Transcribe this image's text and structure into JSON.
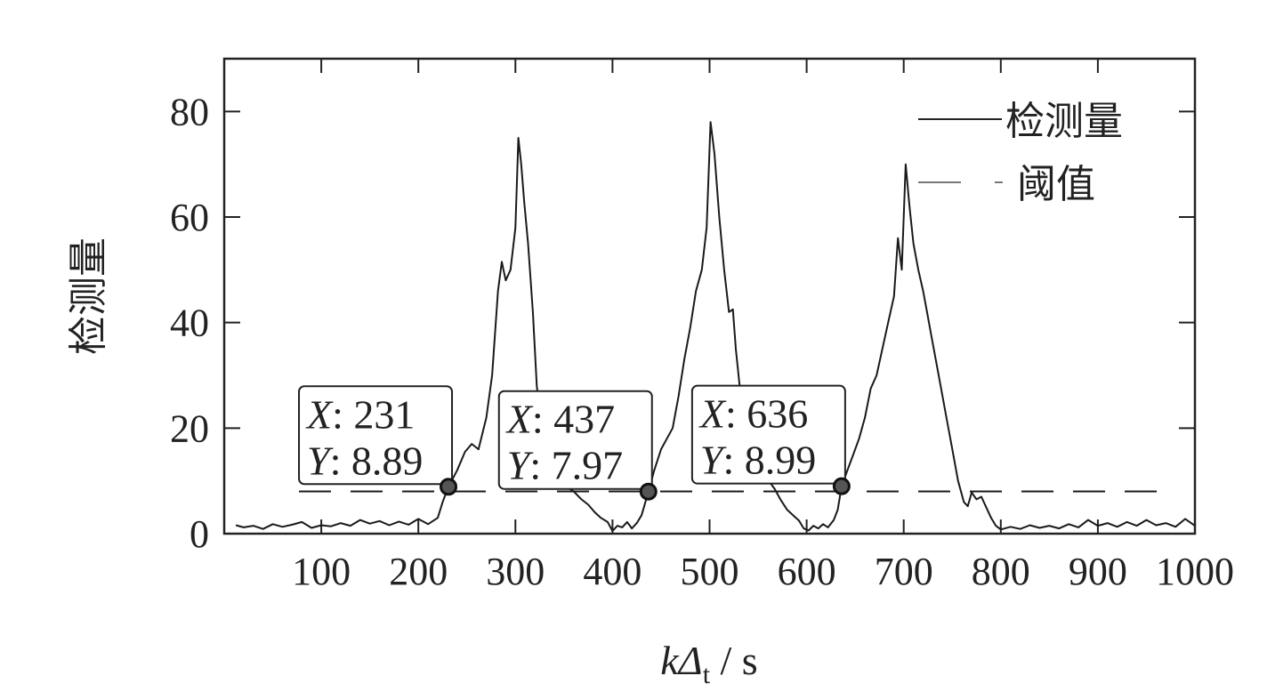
{
  "chart_data": {
    "type": "line",
    "xlabel": {
      "var": "kΔ",
      "sub": "t",
      "unit": " / s"
    },
    "ylabel": "检测量",
    "xlim": [
      0,
      1000
    ],
    "ylim": [
      0,
      90
    ],
    "xticks": [
      100,
      200,
      300,
      400,
      500,
      600,
      700,
      800,
      900,
      1000
    ],
    "yticks": [
      0,
      20,
      40,
      60,
      80
    ],
    "legend_position": "top-right",
    "series": [
      {
        "name": "检测量",
        "style": "solid",
        "color": "#1a1a1a",
        "points": [
          [
            12,
            1.6
          ],
          [
            20,
            1.2
          ],
          [
            30,
            1.5
          ],
          [
            40,
            0.9
          ],
          [
            50,
            1.8
          ],
          [
            60,
            1.3
          ],
          [
            70,
            1.7
          ],
          [
            80,
            2.2
          ],
          [
            90,
            1.1
          ],
          [
            100,
            1.6
          ],
          [
            110,
            1.4
          ],
          [
            120,
            2.0
          ],
          [
            130,
            1.5
          ],
          [
            140,
            2.6
          ],
          [
            150,
            1.9
          ],
          [
            160,
            2.4
          ],
          [
            170,
            1.6
          ],
          [
            180,
            2.3
          ],
          [
            190,
            1.7
          ],
          [
            200,
            2.8
          ],
          [
            210,
            1.8
          ],
          [
            220,
            3.0
          ],
          [
            225,
            6.0
          ],
          [
            231,
            8.89
          ],
          [
            240,
            12.0
          ],
          [
            248,
            15.5
          ],
          [
            255,
            17.0
          ],
          [
            262,
            16.0
          ],
          [
            270,
            22.0
          ],
          [
            276,
            30.0
          ],
          [
            282,
            46.0
          ],
          [
            286,
            51.5
          ],
          [
            290,
            48.0
          ],
          [
            295,
            50.0
          ],
          [
            300,
            58.0
          ],
          [
            303,
            75.0
          ],
          [
            306,
            70.0
          ],
          [
            309,
            63.0
          ],
          [
            313,
            55.0
          ],
          [
            318,
            42.0
          ],
          [
            322,
            28.0
          ],
          [
            327,
            20.0
          ],
          [
            332,
            16.0
          ],
          [
            338,
            12.0
          ],
          [
            345,
            10.0
          ],
          [
            352,
            9.0
          ],
          [
            360,
            8.0
          ],
          [
            368,
            6.5
          ],
          [
            375,
            5.5
          ],
          [
            382,
            4.0
          ],
          [
            388,
            3.0
          ],
          [
            395,
            2.2
          ],
          [
            400,
            0.5
          ],
          [
            405,
            1.5
          ],
          [
            410,
            1.2
          ],
          [
            415,
            2.2
          ],
          [
            420,
            1.0
          ],
          [
            425,
            2.0
          ],
          [
            430,
            3.5
          ],
          [
            437,
            7.97
          ],
          [
            443,
            12.0
          ],
          [
            450,
            16.0
          ],
          [
            456,
            18.0
          ],
          [
            462,
            20.0
          ],
          [
            468,
            26.0
          ],
          [
            474,
            33.0
          ],
          [
            480,
            39.0
          ],
          [
            486,
            46.0
          ],
          [
            492,
            50.0
          ],
          [
            497,
            58.0
          ],
          [
            501,
            78.0
          ],
          [
            505,
            72.0
          ],
          [
            510,
            60.0
          ],
          [
            515,
            50.0
          ],
          [
            520,
            42.0
          ],
          [
            524,
            42.5
          ],
          [
            527,
            35.0
          ],
          [
            531,
            28.0
          ],
          [
            536,
            22.0
          ],
          [
            542,
            18.0
          ],
          [
            548,
            15.0
          ],
          [
            555,
            12.0
          ],
          [
            561,
            10.0
          ],
          [
            567,
            8.5
          ],
          [
            573,
            6.5
          ],
          [
            580,
            4.5
          ],
          [
            586,
            3.5
          ],
          [
            592,
            2.5
          ],
          [
            597,
            1.0
          ],
          [
            602,
            0.6
          ],
          [
            607,
            1.5
          ],
          [
            612,
            1.0
          ],
          [
            617,
            1.8
          ],
          [
            622,
            1.2
          ],
          [
            628,
            2.6
          ],
          [
            632,
            4.5
          ],
          [
            636,
            8.99
          ],
          [
            642,
            12.0
          ],
          [
            648,
            15.0
          ],
          [
            654,
            18.0
          ],
          [
            660,
            22.0
          ],
          [
            666,
            27.5
          ],
          [
            672,
            30.0
          ],
          [
            678,
            35.0
          ],
          [
            684,
            40.0
          ],
          [
            690,
            45.0
          ],
          [
            694,
            56.0
          ],
          [
            698,
            50.0
          ],
          [
            702,
            70.0
          ],
          [
            706,
            62.0
          ],
          [
            710,
            55.0
          ],
          [
            715,
            50.0
          ],
          [
            720,
            46.0
          ],
          [
            724,
            42.0
          ],
          [
            728,
            38.0
          ],
          [
            733,
            33.0
          ],
          [
            738,
            28.0
          ],
          [
            744,
            22.0
          ],
          [
            750,
            16.0
          ],
          [
            756,
            10.0
          ],
          [
            762,
            6.0
          ],
          [
            766,
            5.2
          ],
          [
            770,
            7.8
          ],
          [
            775,
            6.5
          ],
          [
            780,
            7.0
          ],
          [
            785,
            5.0
          ],
          [
            790,
            3.0
          ],
          [
            795,
            1.5
          ],
          [
            800,
            0.8
          ],
          [
            810,
            1.3
          ],
          [
            820,
            0.9
          ],
          [
            830,
            1.6
          ],
          [
            840,
            1.1
          ],
          [
            850,
            1.5
          ],
          [
            860,
            1.0
          ],
          [
            870,
            1.8
          ],
          [
            880,
            1.2
          ],
          [
            890,
            2.6
          ],
          [
            900,
            1.5
          ],
          [
            910,
            2.0
          ],
          [
            920,
            1.3
          ],
          [
            930,
            2.2
          ],
          [
            940,
            1.5
          ],
          [
            950,
            2.6
          ],
          [
            960,
            1.6
          ],
          [
            970,
            2.0
          ],
          [
            980,
            1.3
          ],
          [
            990,
            2.8
          ],
          [
            1000,
            1.5
          ]
        ]
      },
      {
        "name": "阈值",
        "style": "dashed",
        "color": "#1a1a1a",
        "y": 8.0
      }
    ],
    "annotations": [
      {
        "x": 231,
        "y": 8.89,
        "x_text": "231",
        "y_text": "8.89"
      },
      {
        "x": 437,
        "y": 7.97,
        "x_text": "437",
        "y_text": "7.97"
      },
      {
        "x": 636,
        "y": 8.99,
        "x_text": "636",
        "y_text": "8.99"
      }
    ]
  }
}
